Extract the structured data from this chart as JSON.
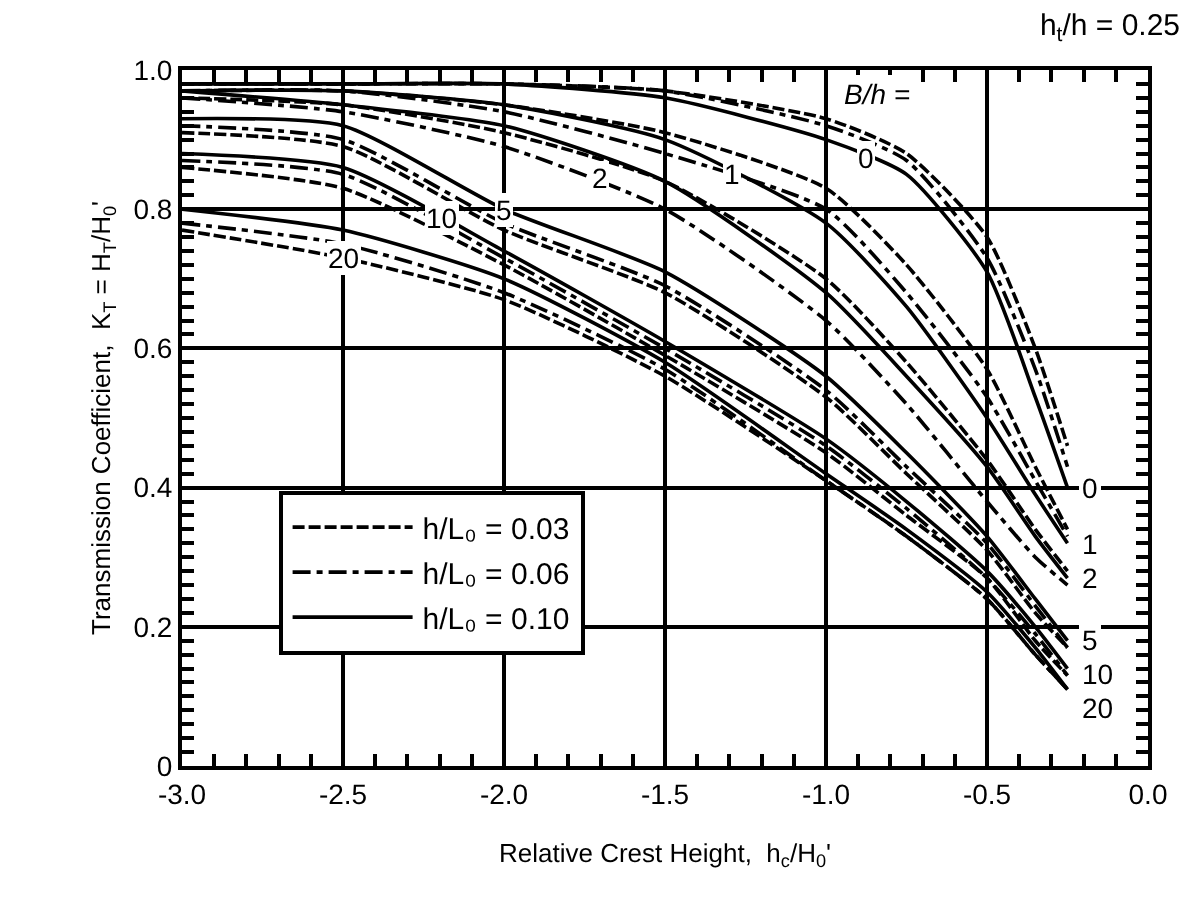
{
  "chart_data": {
    "type": "line",
    "title": "h$_{t}$/h = 0.25",
    "xlabel": "Relative Crest Height,  h$_{c}$/H$_{0}$'",
    "ylabel": "Transmission Coefficient,  K$_{T}$ = H$_{T}$/H$_{0}$'",
    "x": [
      -3.0,
      -2.5,
      -2.0,
      -1.5,
      -1.0,
      -0.75,
      -0.5,
      -0.35,
      -0.25
    ],
    "series": [
      {
        "name": "h/L₀ = 0.03",
        "color": "#000000",
        "line_style": "dashed",
        "values": [
          0.98,
          0.98,
          0.98,
          0.97,
          0.93,
          0.88,
          0.76,
          0.6,
          0.46
        ]
      },
      {
        "name": "h/L₀ = 0.06",
        "color": "#000000",
        "line_style": "dashdot",
        "values": [
          0.98,
          0.98,
          0.98,
          0.97,
          0.92,
          0.87,
          0.73,
          0.57,
          0.43
        ]
      },
      {
        "name": "h/L₀ = 0.10",
        "color": "#000000",
        "line_style": "solid",
        "values": [
          0.98,
          0.98,
          0.98,
          0.96,
          0.9,
          0.85,
          0.71,
          0.53,
          0.4
        ]
      },
      {
        "color": "#000000",
        "line_style": "dashed",
        "values": [
          0.97,
          0.97,
          0.95,
          0.91,
          0.83,
          0.72,
          0.57,
          0.43,
          0.34
        ]
      },
      {
        "color": "#000000",
        "line_style": "dashdot",
        "values": [
          0.97,
          0.97,
          0.94,
          0.88,
          0.8,
          0.68,
          0.53,
          0.41,
          0.33
        ]
      },
      {
        "color": "#000000",
        "line_style": "solid",
        "values": [
          0.97,
          0.97,
          0.95,
          0.9,
          0.78,
          0.66,
          0.5,
          0.39,
          0.32
        ]
      },
      {
        "color": "#000000",
        "line_style": "dashed",
        "values": [
          0.96,
          0.95,
          0.91,
          0.84,
          0.7,
          0.58,
          0.44,
          0.34,
          0.28
        ]
      },
      {
        "color": "#000000",
        "line_style": "dashdot",
        "values": [
          0.96,
          0.94,
          0.89,
          0.8,
          0.64,
          0.52,
          0.38,
          0.3,
          0.26
        ]
      },
      {
        "color": "#000000",
        "line_style": "solid",
        "values": [
          0.97,
          0.95,
          0.92,
          0.84,
          0.68,
          0.56,
          0.43,
          0.33,
          0.27
        ]
      },
      {
        "color": "#000000",
        "line_style": "dashed",
        "values": [
          0.91,
          0.89,
          0.77,
          0.68,
          0.53,
          0.42,
          0.31,
          0.22,
          0.17
        ]
      },
      {
        "color": "#000000",
        "line_style": "dashdot",
        "values": [
          0.92,
          0.9,
          0.78,
          0.69,
          0.54,
          0.43,
          0.32,
          0.23,
          0.17
        ]
      },
      {
        "color": "#000000",
        "line_style": "solid",
        "values": [
          0.93,
          0.92,
          0.8,
          0.71,
          0.56,
          0.45,
          0.33,
          0.24,
          0.18
        ]
      },
      {
        "color": "#000000",
        "line_style": "dashed",
        "values": [
          0.86,
          0.83,
          0.72,
          0.59,
          0.45,
          0.36,
          0.27,
          0.18,
          0.13
        ]
      },
      {
        "color": "#000000",
        "line_style": "dashdot",
        "values": [
          0.87,
          0.85,
          0.73,
          0.6,
          0.46,
          0.37,
          0.27,
          0.19,
          0.13
        ]
      },
      {
        "color": "#000000",
        "line_style": "solid",
        "values": [
          0.88,
          0.86,
          0.74,
          0.61,
          0.47,
          0.38,
          0.28,
          0.2,
          0.14
        ]
      },
      {
        "color": "#000000",
        "line_style": "dashed",
        "values": [
          0.77,
          0.73,
          0.67,
          0.56,
          0.41,
          0.33,
          0.24,
          0.16,
          0.11
        ]
      },
      {
        "color": "#000000",
        "line_style": "dashdot",
        "values": [
          0.78,
          0.75,
          0.68,
          0.57,
          0.41,
          0.33,
          0.24,
          0.16,
          0.11
        ]
      },
      {
        "color": "#000000",
        "line_style": "solid",
        "values": [
          0.8,
          0.77,
          0.7,
          0.58,
          0.42,
          0.34,
          0.25,
          0.17,
          0.11
        ]
      }
    ],
    "xlim": [
      -3.0,
      0.0
    ],
    "ylim": [
      0,
      1.0
    ],
    "xticks": [
      {
        "value": -3.0,
        "label": "-3.0"
      },
      -2.5,
      {
        "value": -2.0,
        "label": "-2.0"
      },
      -1.5,
      {
        "value": -1.0,
        "label": "-1.0"
      },
      -0.5,
      {
        "value": 0.0,
        "label": "0.0"
      }
    ],
    "yticks": [
      0,
      0.2,
      0.4,
      0.6,
      0.8,
      {
        "value": 1.0,
        "label": "1.0"
      }
    ],
    "grid": true,
    "legend": "bottom left",
    "marker": "none",
    "annotations": [
      "B/h =",
      {
        "text": "0",
        "x": -0.875,
        "y": 0.875
      },
      {
        "text": "1",
        "x": -1.29,
        "y": 0.85
      },
      {
        "text": "2",
        "x": -1.7,
        "y": 0.845
      },
      {
        "text": "5",
        "x": -2.0,
        "y": 0.8
      },
      {
        "text": "10",
        "x": -2.19,
        "y": 0.786
      },
      {
        "text": "20",
        "x": -2.5,
        "y": 0.73
      },
      {
        "text": "0",
        "x": -0.25,
        "y": 0.4
      },
      {
        "text": "1",
        "x": -0.25,
        "y": 0.32
      },
      {
        "text": "2",
        "x": -0.25,
        "y": 0.27
      },
      {
        "text": "5",
        "x": -0.25,
        "y": 0.18
      },
      {
        "text": "10",
        "x": -0.25,
        "y": 0.14
      },
      {
        "text": "20",
        "x": -0.25,
        "y": 0.11
      }
    ]
  }
}
